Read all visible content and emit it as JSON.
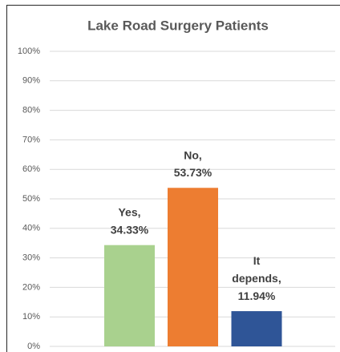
{
  "chart_data": {
    "type": "bar",
    "title": "Lake Road Surgery Patients",
    "categories": [
      "Yes,",
      "No,",
      "It depends,"
    ],
    "values": [
      34.33,
      53.73,
      11.94
    ],
    "value_labels": [
      "34.33%",
      "53.73%",
      "11.94%"
    ],
    "colors": [
      "#a9d18e",
      "#ed7d31",
      "#2f5597"
    ],
    "ylim": [
      0,
      100
    ],
    "yticks": [
      {
        "value": 0,
        "label": "0%"
      },
      {
        "value": 10,
        "label": "10%"
      },
      {
        "value": 20,
        "label": "20%"
      },
      {
        "value": 30,
        "label": "30%"
      },
      {
        "value": 40,
        "label": "40%"
      },
      {
        "value": 50,
        "label": "50%"
      },
      {
        "value": 60,
        "label": "60%"
      },
      {
        "value": 70,
        "label": "70%"
      },
      {
        "value": 80,
        "label": "80%"
      },
      {
        "value": 90,
        "label": "90%"
      },
      {
        "value": 100,
        "label": "100%"
      }
    ],
    "grid": true
  }
}
